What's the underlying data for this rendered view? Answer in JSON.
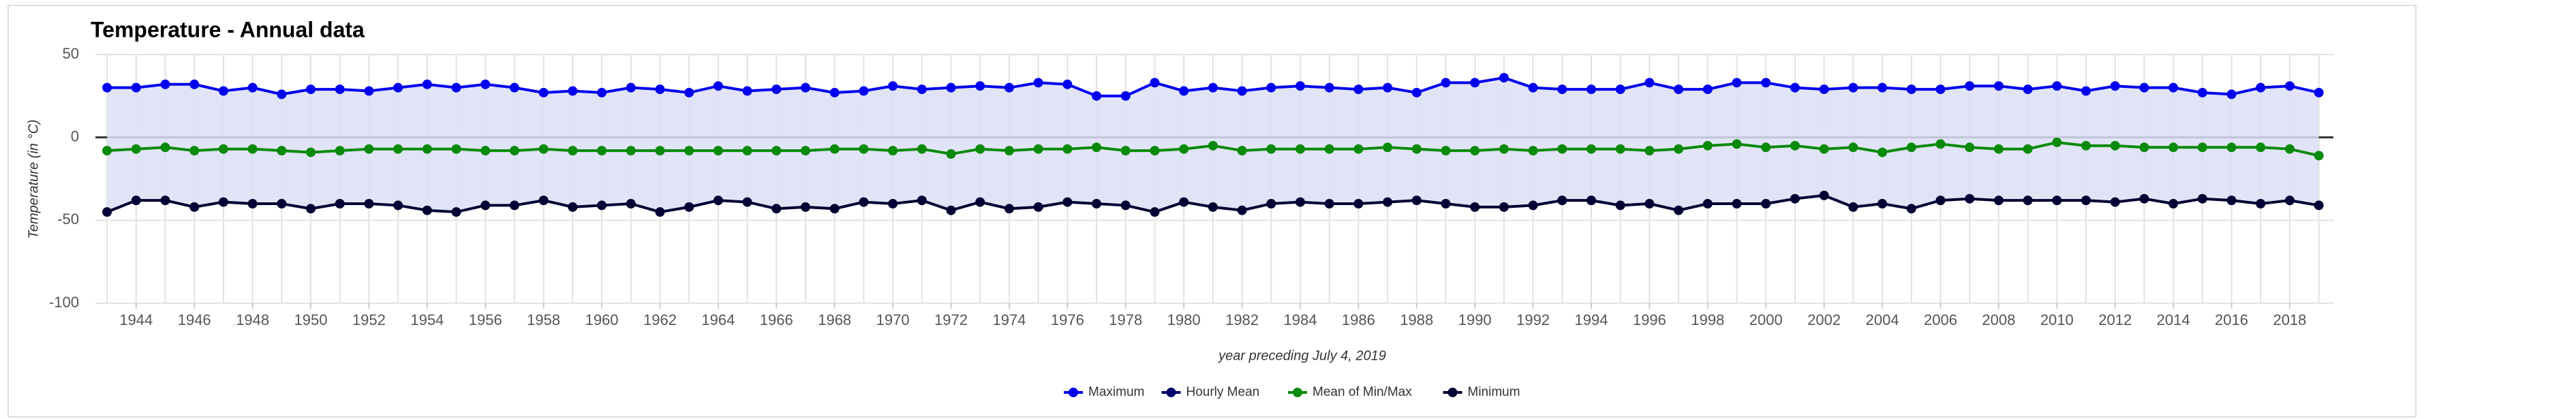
{
  "chart_data": {
    "type": "line",
    "title": "Temperature - Annual data",
    "x_label": "year preceding July 4, 2019",
    "y_label": "Temperature (in °C)",
    "x": [
      1943,
      1944,
      1945,
      1946,
      1947,
      1948,
      1949,
      1950,
      1951,
      1952,
      1953,
      1954,
      1955,
      1956,
      1957,
      1958,
      1959,
      1960,
      1961,
      1962,
      1963,
      1964,
      1965,
      1966,
      1967,
      1968,
      1969,
      1970,
      1971,
      1972,
      1973,
      1974,
      1975,
      1976,
      1977,
      1978,
      1979,
      1980,
      1981,
      1982,
      1983,
      1984,
      1985,
      1986,
      1987,
      1988,
      1989,
      1990,
      1991,
      1992,
      1993,
      1994,
      1995,
      1996,
      1997,
      1998,
      1999,
      2000,
      2001,
      2002,
      2003,
      2004,
      2005,
      2006,
      2007,
      2008,
      2009,
      2010,
      2011,
      2012,
      2013,
      2014,
      2015,
      2016,
      2017,
      2018,
      2019
    ],
    "xlim": [
      1942.6,
      2019.5
    ],
    "xticks": [
      1944,
      1946,
      1948,
      1950,
      1952,
      1954,
      1956,
      1958,
      1960,
      1962,
      1964,
      1966,
      1968,
      1970,
      1972,
      1974,
      1976,
      1978,
      1980,
      1982,
      1984,
      1986,
      1988,
      1990,
      1992,
      1994,
      1996,
      1998,
      2000,
      2002,
      2004,
      2006,
      2008,
      2010,
      2012,
      2014,
      2016,
      2018
    ],
    "ylim": [
      -100,
      50
    ],
    "yticks": [
      -100,
      -50,
      0,
      50
    ],
    "grid": true,
    "area_color": "#dcdff5",
    "legend": "bottom",
    "series": [
      {
        "name": "Maximum",
        "color": "#0000ee",
        "values": [
          30,
          30,
          32,
          32,
          28,
          30,
          26,
          29,
          29,
          28,
          30,
          32,
          30,
          32,
          30,
          27,
          28,
          27,
          30,
          29,
          27,
          31,
          28,
          29,
          30,
          27,
          28,
          31,
          29,
          30,
          31,
          30,
          33,
          32,
          25,
          25,
          33,
          28,
          30,
          28,
          30,
          31,
          30,
          29,
          30,
          27,
          33,
          33,
          36,
          30,
          29,
          29,
          29,
          33,
          29,
          29,
          33,
          33,
          30,
          29,
          30,
          30,
          29,
          29,
          31,
          31,
          29,
          31,
          28,
          31,
          30,
          30,
          27,
          26,
          30,
          31,
          27
        ]
      },
      {
        "name": "Hourly Mean",
        "color": "#00006e",
        "values": [
          null,
          null,
          null,
          null,
          null,
          null,
          null,
          null,
          null,
          null,
          null,
          null,
          null,
          null,
          null,
          null,
          null,
          null,
          null,
          null,
          null,
          null,
          null,
          null,
          null,
          null,
          null,
          null,
          null,
          null,
          null,
          null,
          null,
          null,
          null,
          null,
          null,
          null,
          null,
          null,
          null,
          null,
          null,
          null,
          null,
          null,
          null,
          null,
          null,
          null,
          null,
          null,
          null,
          null,
          null,
          null,
          null,
          null,
          null,
          null,
          null,
          null,
          null,
          null,
          null,
          null,
          null,
          null,
          null,
          null,
          null,
          null,
          null,
          null,
          null,
          null,
          null
        ]
      },
      {
        "name": "Mean of Min/Max",
        "color": "#0a8a0a",
        "values": [
          -8,
          -7,
          -6,
          -8,
          -7,
          -7,
          -8,
          -9,
          -8,
          -7,
          -7,
          -7,
          -7,
          -8,
          -8,
          -7,
          -8,
          -8,
          -8,
          -8,
          -8,
          -8,
          -8,
          -8,
          -8,
          -7,
          -7,
          -8,
          -7,
          -10,
          -7,
          -8,
          -7,
          -7,
          -6,
          -8,
          -8,
          -7,
          -5,
          -8,
          -7,
          -7,
          -7,
          -7,
          -6,
          -7,
          -8,
          -8,
          -7,
          -8,
          -7,
          -7,
          -7,
          -8,
          -7,
          -5,
          -4,
          -6,
          -5,
          -7,
          -6,
          -9,
          -6,
          -4,
          -6,
          -7,
          -7,
          -3,
          -5,
          -5,
          -6,
          -6,
          -6,
          -6,
          -6,
          -7,
          -11
        ]
      },
      {
        "name": "Minimum",
        "color": "#000033",
        "values": [
          -45,
          -38,
          -38,
          -42,
          -39,
          -40,
          -40,
          -43,
          -40,
          -40,
          -41,
          -44,
          -45,
          -41,
          -41,
          -38,
          -42,
          -41,
          -40,
          -45,
          -42,
          -38,
          -39,
          -43,
          -42,
          -43,
          -39,
          -40,
          -38,
          -44,
          -39,
          -43,
          -42,
          -39,
          -40,
          -41,
          -45,
          -39,
          -42,
          -44,
          -40,
          -39,
          -40,
          -40,
          -39,
          -38,
          -40,
          -42,
          -42,
          -41,
          -38,
          -38,
          -41,
          -40,
          -44,
          -40,
          -40,
          -40,
          -37,
          -35,
          -42,
          -40,
          -43,
          -38,
          -37,
          -38,
          -38,
          -38,
          -38,
          -39,
          -37,
          -40,
          -37,
          -38,
          -40,
          -38,
          -41
        ]
      }
    ]
  }
}
